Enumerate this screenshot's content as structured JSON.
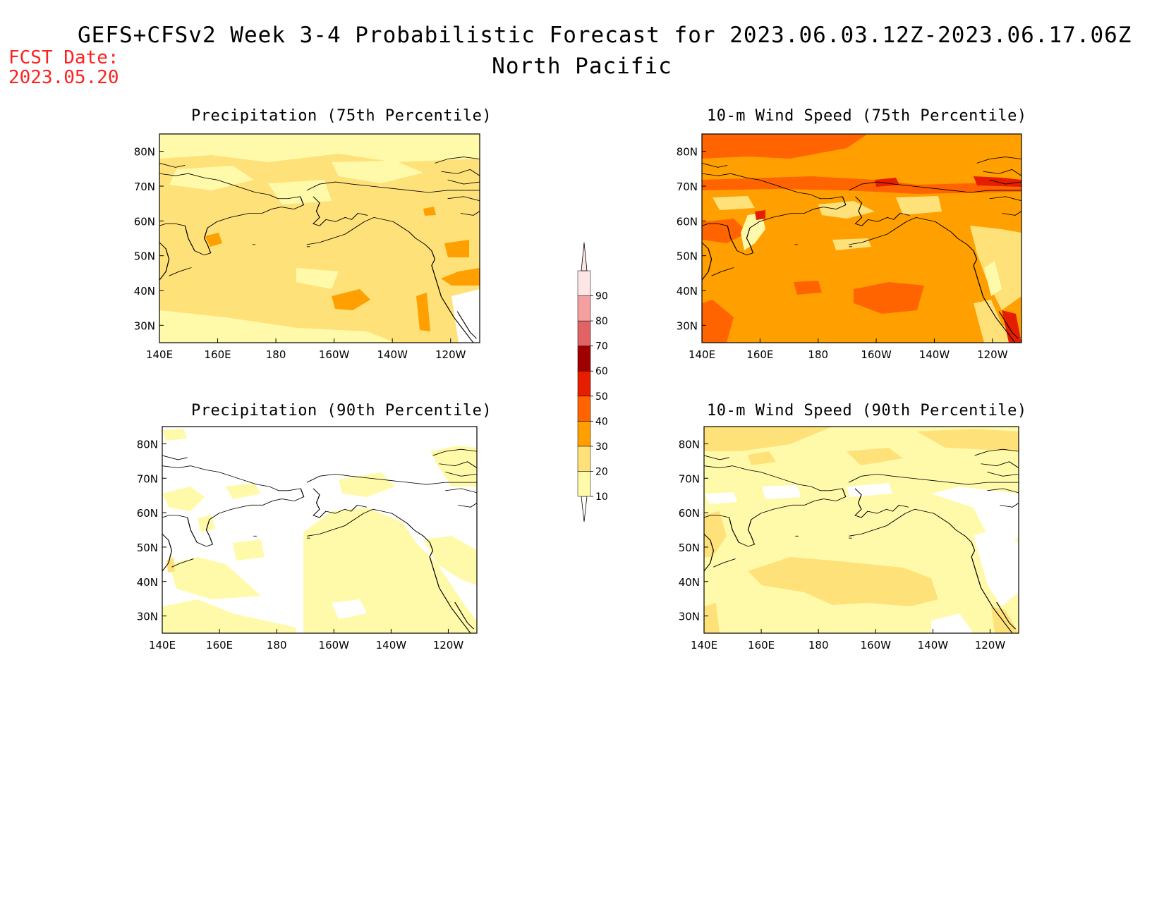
{
  "title": {
    "line1": "GEFS+CFSv2 Week 3-4 Probabilistic Forecast for 2023.06.03.12Z-2023.06.17.06Z",
    "line2": "North Pacific"
  },
  "fcst_date": {
    "label": "FCST Date:",
    "value": "2023.05.20"
  },
  "map_axes": {
    "lon_ticks": [
      "140E",
      "160E",
      "180",
      "160W",
      "140W",
      "120W"
    ],
    "lat_ticks": [
      "80N",
      "70N",
      "60N",
      "50N",
      "40N",
      "30N"
    ]
  },
  "panels": [
    {
      "id": "precip-75",
      "title": "Precipitation (75th Percentile)",
      "dominant_category": "20-30"
    },
    {
      "id": "wind-75",
      "title": "10-m Wind Speed (75th Percentile)",
      "dominant_category": "30-40"
    },
    {
      "id": "precip-90",
      "title": "Precipitation (90th Percentile)",
      "dominant_category": "<10"
    },
    {
      "id": "wind-90",
      "title": "10-m Wind Speed (90th Percentile)",
      "dominant_category": "10-20"
    }
  ],
  "colorbar": {
    "labels": [
      "10",
      "20",
      "30",
      "40",
      "50",
      "60",
      "70",
      "80",
      "90"
    ],
    "colors": [
      "#fffaaa",
      "#ffe17a",
      "#ffa000",
      "#ff6400",
      "#e61e00",
      "#a00000",
      "#e06464",
      "#f5a0a0",
      "#ffe6e6"
    ]
  }
}
